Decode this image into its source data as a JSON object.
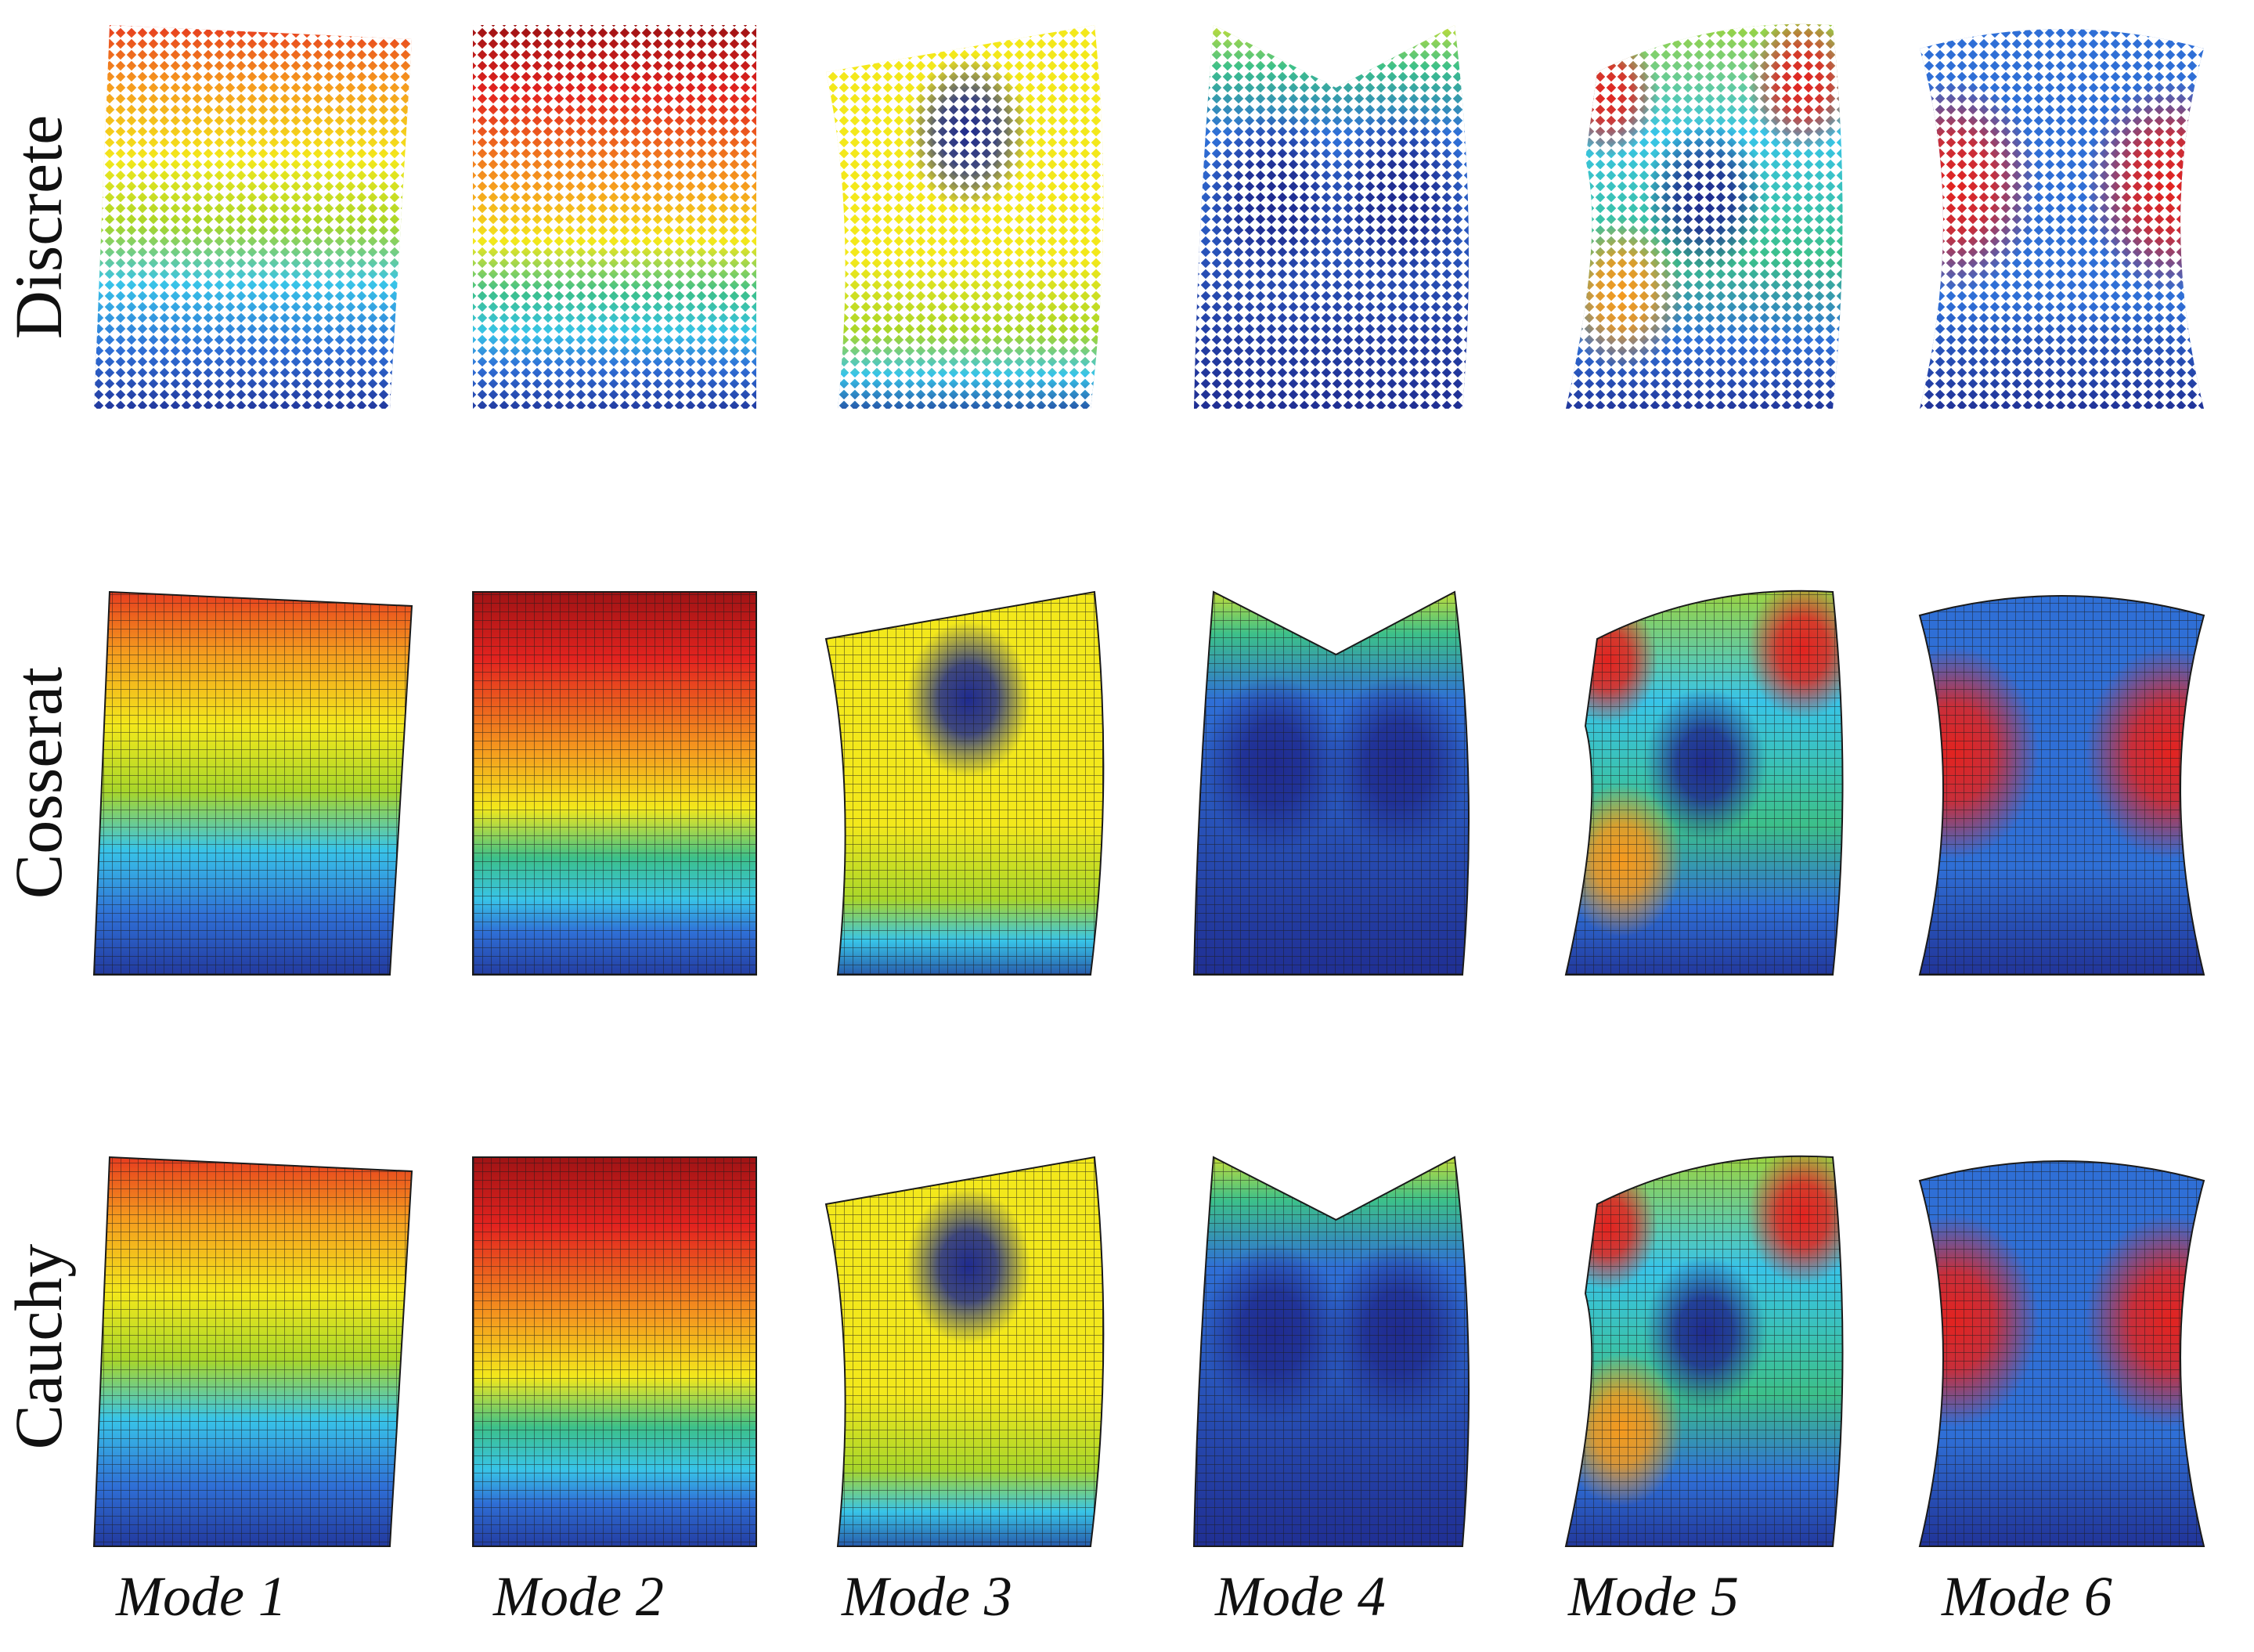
{
  "figure": {
    "rows": [
      {
        "label": "Discrete",
        "style": "lattice"
      },
      {
        "label": "Cosserat",
        "style": "mesh"
      },
      {
        "label": "Cauchy",
        "style": "mesh"
      }
    ],
    "columns": [
      {
        "label": "Mode 1",
        "mode": 1
      },
      {
        "label": "Mode 2",
        "mode": 2
      },
      {
        "label": "Mode 3",
        "mode": 3
      },
      {
        "label": "Mode 4",
        "mode": 4
      },
      {
        "label": "Mode 5",
        "mode": 5
      },
      {
        "label": "Mode 6",
        "mode": 6
      }
    ],
    "colormap": [
      "#1f2b8f",
      "#2f6fd6",
      "#38c4e8",
      "#3cc08a",
      "#a8d62a",
      "#f3e81b",
      "#f59a1e",
      "#e3231f",
      "#8f0f12"
    ]
  }
}
